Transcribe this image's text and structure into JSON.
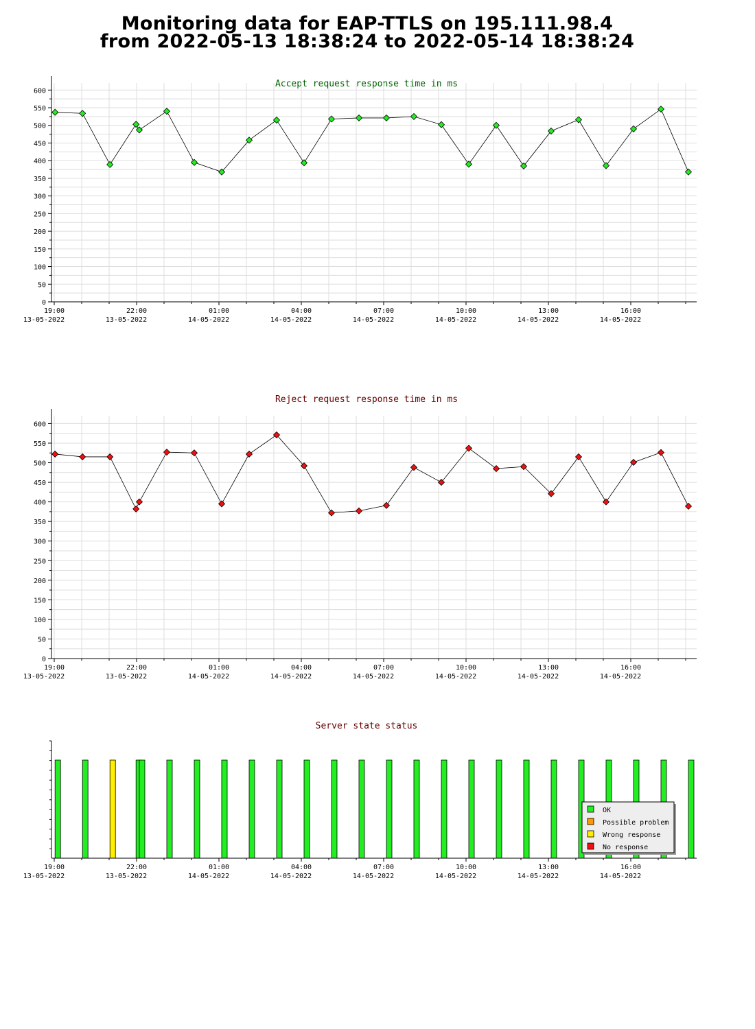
{
  "page": {
    "title_line1": "Monitoring data for EAP-TTLS on 195.111.98.4",
    "title_line2": "from 2022-05-13 18:38:24 to 2022-05-14 18:38:24"
  },
  "colors": {
    "accept_title": "#006600",
    "reject_title": "#660000",
    "status_title": "#660000",
    "accept_marker": "#22ee22",
    "reject_marker": "#ee1111",
    "grid": "#dddddd",
    "ok": "#22ee22",
    "possible_problem": "#ff9900",
    "wrong_response": "#ffee00",
    "no_response": "#ee1111"
  },
  "chart_data": [
    {
      "type": "line",
      "title": "Accept request response time in ms",
      "ylim": [
        0,
        620
      ],
      "yticks": [
        0,
        50,
        100,
        150,
        200,
        250,
        300,
        350,
        400,
        450,
        500,
        550,
        600
      ],
      "xlim_hours": [
        0,
        23.5
      ],
      "xticks": [
        {
          "h": 0,
          "time": "19:00",
          "date": "13-05-2022"
        },
        {
          "h": 3,
          "time": "22:00",
          "date": "13-05-2022"
        },
        {
          "h": 6,
          "time": "01:00",
          "date": "14-05-2022"
        },
        {
          "h": 9,
          "time": "04:00",
          "date": "14-05-2022"
        },
        {
          "h": 12,
          "time": "07:00",
          "date": "14-05-2022"
        },
        {
          "h": 15,
          "time": "10:00",
          "date": "14-05-2022"
        },
        {
          "h": 18,
          "time": "13:00",
          "date": "14-05-2022"
        },
        {
          "h": 21,
          "time": "16:00",
          "date": "14-05-2022"
        }
      ],
      "grid": true,
      "marker_color": "#22ee22",
      "x": [
        0.03,
        1.03,
        2.03,
        2.98,
        3.1,
        4.1,
        5.1,
        6.1,
        7.1,
        8.1,
        9.1,
        10.1,
        11.1,
        12.1,
        13.1,
        14.1,
        15.1,
        16.1,
        17.1,
        18.1,
        19.1,
        20.1,
        21.1,
        22.1,
        23.1
      ],
      "y": [
        537,
        534,
        389,
        503,
        487,
        540,
        395,
        368,
        458,
        515,
        394,
        518,
        521,
        521,
        525,
        502,
        390,
        500,
        385,
        484,
        516,
        386,
        490,
        546,
        368
      ]
    },
    {
      "type": "line",
      "title": "Reject request response time in ms",
      "ylim": [
        0,
        620
      ],
      "yticks": [
        0,
        50,
        100,
        150,
        200,
        250,
        300,
        350,
        400,
        450,
        500,
        550,
        600
      ],
      "xlim_hours": [
        0,
        23.5
      ],
      "xticks": [
        {
          "h": 0,
          "time": "19:00",
          "date": "13-05-2022"
        },
        {
          "h": 3,
          "time": "22:00",
          "date": "13-05-2022"
        },
        {
          "h": 6,
          "time": "01:00",
          "date": "14-05-2022"
        },
        {
          "h": 9,
          "time": "04:00",
          "date": "14-05-2022"
        },
        {
          "h": 12,
          "time": "07:00",
          "date": "14-05-2022"
        },
        {
          "h": 15,
          "time": "10:00",
          "date": "14-05-2022"
        },
        {
          "h": 18,
          "time": "13:00",
          "date": "14-05-2022"
        },
        {
          "h": 21,
          "time": "16:00",
          "date": "14-05-2022"
        }
      ],
      "grid": true,
      "marker_color": "#ee1111",
      "x": [
        0.03,
        1.03,
        2.03,
        2.98,
        3.1,
        4.1,
        5.1,
        6.1,
        7.1,
        8.1,
        9.1,
        10.1,
        11.1,
        12.1,
        13.1,
        14.1,
        15.1,
        16.1,
        17.1,
        18.1,
        19.1,
        20.1,
        21.1,
        22.1,
        23.1
      ],
      "y": [
        522,
        515,
        515,
        382,
        400,
        527,
        525,
        395,
        522,
        571,
        492,
        372,
        377,
        391,
        488,
        450,
        537,
        485,
        490,
        421,
        515,
        400,
        501,
        526,
        389
      ]
    },
    {
      "type": "bar",
      "title": "Server state status",
      "xlim_hours": [
        0,
        23.5
      ],
      "xticks": [
        {
          "h": 0,
          "time": "19:00",
          "date": "13-05-2022"
        },
        {
          "h": 3,
          "time": "22:00",
          "date": "13-05-2022"
        },
        {
          "h": 6,
          "time": "01:00",
          "date": "14-05-2022"
        },
        {
          "h": 9,
          "time": "04:00",
          "date": "14-05-2022"
        },
        {
          "h": 12,
          "time": "07:00",
          "date": "14-05-2022"
        },
        {
          "h": 15,
          "time": "10:00",
          "date": "14-05-2022"
        },
        {
          "h": 18,
          "time": "13:00",
          "date": "14-05-2022"
        },
        {
          "h": 21,
          "time": "16:00",
          "date": "14-05-2022"
        }
      ],
      "x": [
        0.03,
        1.03,
        2.03,
        2.98,
        3.1,
        4.1,
        5.1,
        6.1,
        7.1,
        8.1,
        9.1,
        10.1,
        11.1,
        12.1,
        13.1,
        14.1,
        15.1,
        16.1,
        17.1,
        18.1,
        19.1,
        20.1,
        21.1,
        22.1,
        23.1
      ],
      "states": [
        "OK",
        "OK",
        "Wrong response",
        "OK",
        "OK",
        "OK",
        "OK",
        "OK",
        "OK",
        "OK",
        "OK",
        "OK",
        "OK",
        "OK",
        "OK",
        "OK",
        "OK",
        "OK",
        "OK",
        "OK",
        "OK",
        "OK",
        "OK",
        "OK",
        "OK"
      ],
      "legend": [
        {
          "label": "OK",
          "color": "#22ee22"
        },
        {
          "label": "Possible problem",
          "color": "#ff9900"
        },
        {
          "label": "Wrong response",
          "color": "#ffee00"
        },
        {
          "label": "No response",
          "color": "#ee1111"
        }
      ],
      "legend_position": "bottom-right"
    }
  ]
}
